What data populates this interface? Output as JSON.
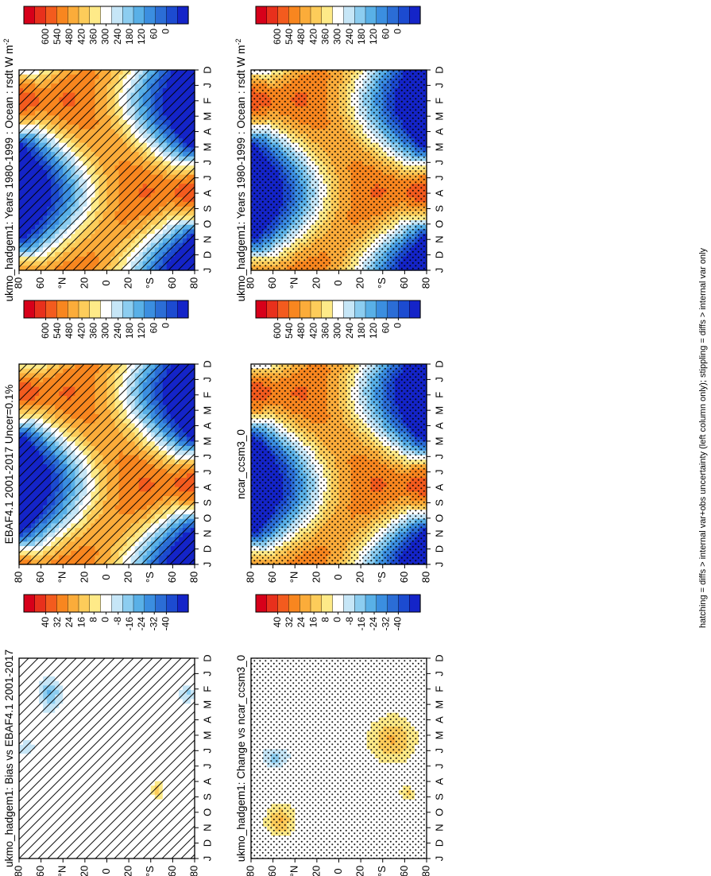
{
  "footer_note": "hatching = diffs > internal var+obs uncertainty (left column only); stippling = diffs > internal var only",
  "chart_data": [
    {
      "type": "heatmap",
      "id": "p1",
      "title": "ukmo_hadgem1: Years 1980-1999 : Ocean : rsdt W m",
      "title_sup": "-2",
      "field": "climatology",
      "offset": 0,
      "overlay": "hatch",
      "x_ticks": [
        "D",
        "J",
        "F",
        "M",
        "A",
        "M",
        "J",
        "J",
        "A",
        "S",
        "O",
        "N",
        "D",
        "J"
      ],
      "y_ticks": [
        "80",
        "60",
        "°N",
        "20",
        "0",
        "20",
        "°S",
        "60",
        "80"
      ],
      "colorbar": {
        "ticks": [
          "600",
          "540",
          "480",
          "420",
          "360",
          "300",
          "240",
          "180",
          "120",
          "60",
          "0"
        ],
        "colors": [
          "#d7001a",
          "#e8301c",
          "#f35b1e",
          "#f8861f",
          "#fbac3a",
          "#fdcc5a",
          "#feea88",
          "#ffffff",
          "#c6e6f7",
          "#8ccdf0",
          "#59b0e7",
          "#3b8ee0",
          "#2b6dd6",
          "#1c4bd0",
          "#1424c8"
        ],
        "vmin": 0,
        "vmax": 600
      },
      "ylim": [
        -90,
        90
      ],
      "units": "W m-2"
    },
    {
      "type": "heatmap",
      "id": "p2",
      "title": "EBAF4.1 2001-2017 Uncer=0.1%",
      "title_sup": "",
      "field": "climatology",
      "offset": 4,
      "overlay": "hatch",
      "x_ticks": [
        "D",
        "J",
        "F",
        "M",
        "A",
        "M",
        "J",
        "J",
        "A",
        "S",
        "O",
        "N",
        "D",
        "J"
      ],
      "y_ticks": [
        "80",
        "60",
        "°N",
        "20",
        "0",
        "20",
        "°S",
        "60",
        "80"
      ],
      "colorbar": {
        "ticks": [
          "600",
          "540",
          "480",
          "420",
          "360",
          "300",
          "240",
          "180",
          "120",
          "60",
          "0"
        ],
        "colors": [
          "#d7001a",
          "#e8301c",
          "#f35b1e",
          "#f8861f",
          "#fbac3a",
          "#fdcc5a",
          "#feea88",
          "#ffffff",
          "#c6e6f7",
          "#8ccdf0",
          "#59b0e7",
          "#3b8ee0",
          "#2b6dd6",
          "#1c4bd0",
          "#1424c8"
        ],
        "vmin": 0,
        "vmax": 600
      },
      "ylim": [
        -90,
        90
      ],
      "units": "W m-2"
    },
    {
      "type": "heatmap",
      "id": "p3",
      "title": "ukmo_hadgem1: Bias vs EBAF4.1 2001-2017",
      "title_sup": "",
      "field": "bias",
      "offset": 0,
      "overlay": "hatch",
      "x_ticks": [
        "D",
        "J",
        "F",
        "M",
        "A",
        "M",
        "J",
        "J",
        "A",
        "S",
        "O",
        "N",
        "D",
        "J"
      ],
      "y_ticks": [
        "80",
        "60",
        "°N",
        "20",
        "0",
        "20",
        "°S",
        "60",
        "80"
      ],
      "colorbar": {
        "ticks": [
          "40",
          "32",
          "24",
          "16",
          "8",
          "0",
          "-8",
          "-16",
          "-24",
          "-32",
          "-40"
        ],
        "colors": [
          "#d7001a",
          "#e8301c",
          "#f35b1e",
          "#f8861f",
          "#fbac3a",
          "#fdcc5a",
          "#feea88",
          "#ffffff",
          "#c6e6f7",
          "#8ccdf0",
          "#59b0e7",
          "#3b8ee0",
          "#2b6dd6",
          "#1c4bd0",
          "#1424c8"
        ],
        "vmin": -40,
        "vmax": 40
      },
      "ylim": [
        -90,
        90
      ],
      "units": "W m-2"
    },
    {
      "type": "heatmap",
      "id": "p4",
      "title": "ukmo_hadgem1: Years 1980-1999 : Ocean : rsdt W m",
      "title_sup": "-2",
      "field": "climatology",
      "offset": 0,
      "overlay": "stipple",
      "x_ticks": [
        "D",
        "J",
        "F",
        "M",
        "A",
        "M",
        "J",
        "J",
        "A",
        "S",
        "O",
        "N",
        "D",
        "J"
      ],
      "y_ticks": [
        "80",
        "60",
        "°N",
        "20",
        "0",
        "20",
        "°S",
        "60",
        "80"
      ],
      "colorbar": {
        "ticks": [
          "600",
          "540",
          "480",
          "420",
          "360",
          "300",
          "240",
          "180",
          "120",
          "60",
          "0"
        ],
        "colors": [
          "#d7001a",
          "#e8301c",
          "#f35b1e",
          "#f8861f",
          "#fbac3a",
          "#fdcc5a",
          "#feea88",
          "#ffffff",
          "#c6e6f7",
          "#8ccdf0",
          "#59b0e7",
          "#3b8ee0",
          "#2b6dd6",
          "#1c4bd0",
          "#1424c8"
        ],
        "vmin": 0,
        "vmax": 600
      },
      "ylim": [
        -90,
        90
      ],
      "units": "W m-2"
    },
    {
      "type": "heatmap",
      "id": "p5",
      "title": "ncar_ccsm3_0",
      "title_sup": "",
      "field": "climatology",
      "offset": 2,
      "overlay": "stipple",
      "x_ticks": [
        "D",
        "J",
        "F",
        "M",
        "A",
        "M",
        "J",
        "J",
        "A",
        "S",
        "O",
        "N",
        "D",
        "J"
      ],
      "y_ticks": [
        "80",
        "60",
        "°N",
        "20",
        "0",
        "20",
        "°S",
        "60",
        "80"
      ],
      "colorbar": {
        "ticks": [
          "600",
          "540",
          "480",
          "420",
          "360",
          "300",
          "240",
          "180",
          "120",
          "60",
          "0"
        ],
        "colors": [
          "#d7001a",
          "#e8301c",
          "#f35b1e",
          "#f8861f",
          "#fbac3a",
          "#fdcc5a",
          "#feea88",
          "#ffffff",
          "#c6e6f7",
          "#8ccdf0",
          "#59b0e7",
          "#3b8ee0",
          "#2b6dd6",
          "#1c4bd0",
          "#1424c8"
        ],
        "vmin": 0,
        "vmax": 600
      },
      "ylim": [
        -90,
        90
      ],
      "units": "W m-2"
    },
    {
      "type": "heatmap",
      "id": "p6",
      "title": "ukmo_hadgem1: Change vs ncar_ccsm3_0",
      "title_sup": "",
      "field": "change",
      "offset": 0,
      "overlay": "stipple",
      "x_ticks": [
        "D",
        "J",
        "F",
        "M",
        "A",
        "M",
        "J",
        "J",
        "A",
        "S",
        "O",
        "N",
        "D",
        "J"
      ],
      "y_ticks": [
        "80",
        "60",
        "°N",
        "20",
        "0",
        "20",
        "°S",
        "60",
        "80"
      ],
      "colorbar": {
        "ticks": [
          "40",
          "32",
          "24",
          "16",
          "8",
          "0",
          "-8",
          "-16",
          "-24",
          "-32",
          "-40"
        ],
        "colors": [
          "#d7001a",
          "#e8301c",
          "#f35b1e",
          "#f8861f",
          "#fbac3a",
          "#fdcc5a",
          "#feea88",
          "#ffffff",
          "#c6e6f7",
          "#8ccdf0",
          "#59b0e7",
          "#3b8ee0",
          "#2b6dd6",
          "#1c4bd0",
          "#1424c8"
        ],
        "vmin": -40,
        "vmax": 40
      },
      "ylim": [
        -90,
        90
      ],
      "units": "W m-2"
    }
  ]
}
